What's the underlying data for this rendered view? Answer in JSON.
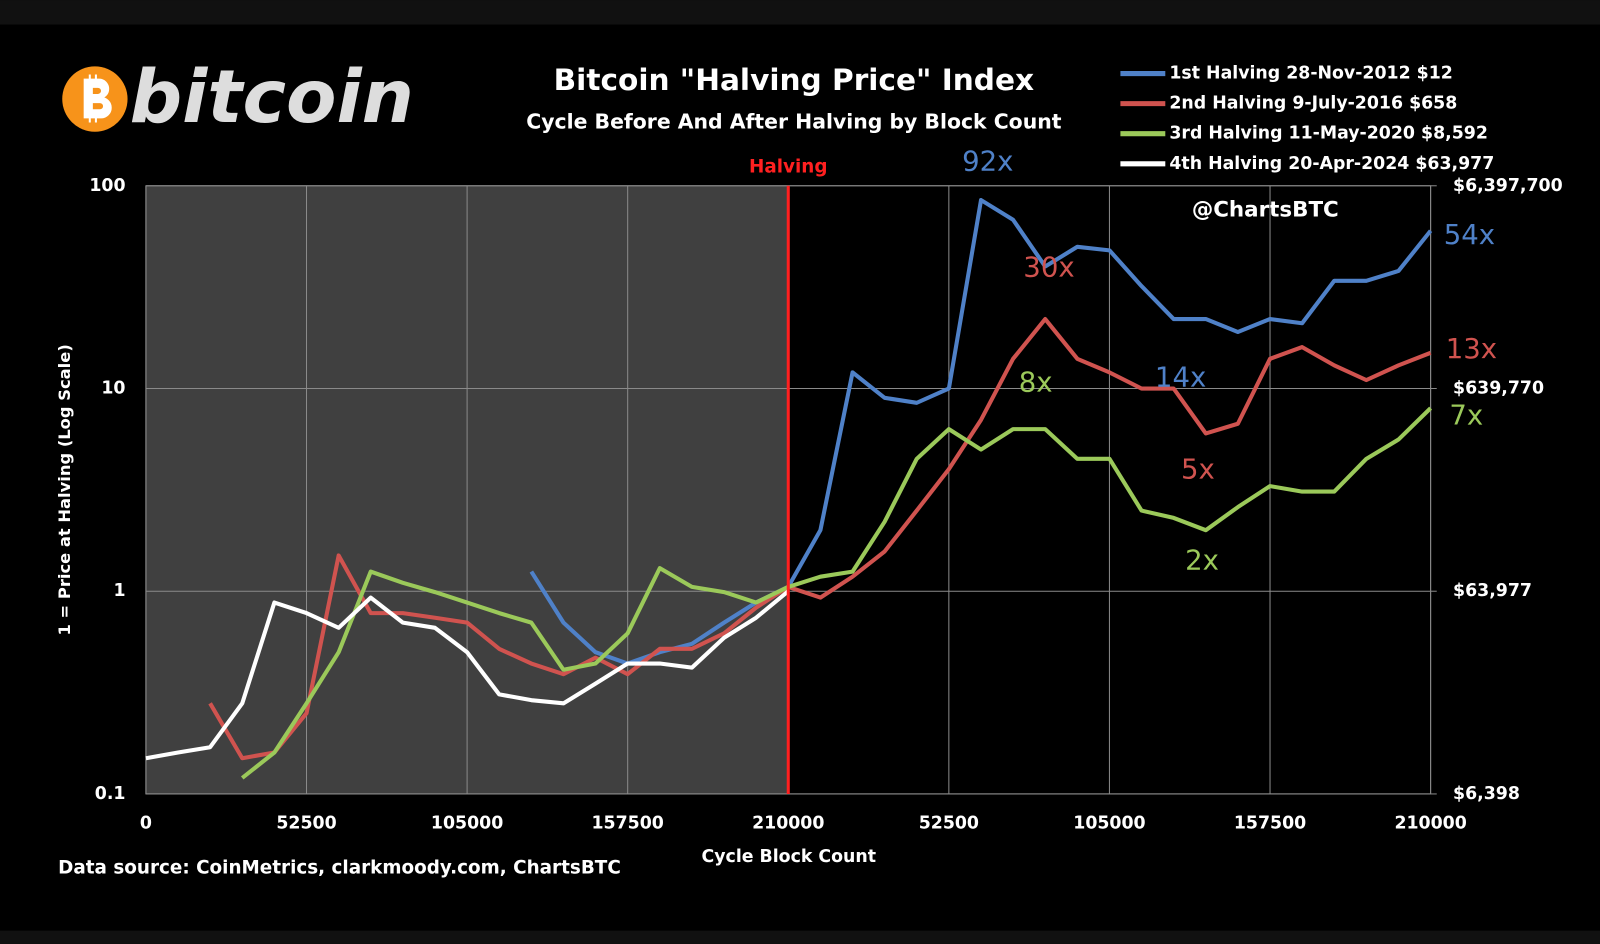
{
  "chart_data": {
    "type": "line",
    "logo_text": "bitcoin",
    "title": "Bitcoin \"Halving Price\" Index",
    "subtitle": "Cycle Before And After Halving by Block Count",
    "watermark": "@ChartsBTC",
    "x_label": "Cycle Block Count",
    "y_label": "1 = Price at Halving (Log Scale)",
    "source": "Data source:  CoinMetrics, clarkmoody.com, ChartsBTC",
    "halving": {
      "label": "Halving",
      "x": 210000,
      "color": "#ff2020"
    },
    "log_scale": true,
    "grid": true,
    "xlim": [
      0,
      420000
    ],
    "xticks": [
      0,
      52500,
      105000,
      157500,
      210000,
      {
        "value": 262500,
        "label": "52500"
      },
      {
        "value": 315000,
        "label": "105000"
      },
      {
        "value": 367500,
        "label": "157500"
      },
      {
        "value": 420000,
        "label": "210000"
      }
    ],
    "ylim": [
      0.1,
      100
    ],
    "yticks": [
      0.1,
      1,
      10,
      100
    ],
    "y2lim": [
      6397.7,
      6397700
    ],
    "y2ticks": [
      {
        "value": 6397.7,
        "label": "$6,398"
      },
      {
        "value": 63977,
        "label": "$63,977"
      },
      {
        "value": 639770,
        "label": "$639,770"
      },
      {
        "value": 6397700,
        "label": "$6,397,700"
      }
    ],
    "x": [
      0,
      10500,
      21000,
      31500,
      42000,
      52500,
      63000,
      73500,
      84000,
      94500,
      105000,
      115500,
      126000,
      136500,
      147000,
      157500,
      168000,
      178500,
      189000,
      199500,
      210000,
      220500,
      231000,
      241500,
      252000,
      262500,
      273000,
      283500,
      294000,
      304500,
      315000,
      325500,
      336000,
      346500,
      357000,
      367500,
      378000,
      388500,
      399000,
      409500,
      420000
    ],
    "series": [
      {
        "name": "1st Halving 28-Nov-2012 $12",
        "color": "#4f81c8",
        "values": [
          null,
          null,
          null,
          null,
          null,
          null,
          null,
          null,
          null,
          null,
          null,
          null,
          1.25,
          0.7,
          0.5,
          0.44,
          0.5,
          0.55,
          0.7,
          0.88,
          1.05,
          2,
          12,
          9,
          8.5,
          10,
          85,
          68,
          40,
          50,
          48,
          32,
          22,
          22,
          19,
          22,
          21,
          34,
          34,
          38,
          60
        ]
      },
      {
        "name": "2nd Halving 9-July-2016 $658",
        "color": "#d0534f",
        "values": [
          null,
          null,
          0.28,
          0.15,
          0.16,
          0.25,
          1.5,
          0.78,
          0.78,
          0.74,
          0.7,
          0.52,
          0.44,
          0.39,
          0.47,
          0.39,
          0.52,
          0.52,
          0.62,
          0.83,
          1.05,
          0.93,
          1.18,
          1.57,
          2.5,
          4,
          7,
          14,
          22,
          14,
          12,
          10,
          10,
          6,
          6.7,
          14,
          16,
          13,
          11,
          13,
          15
        ]
      },
      {
        "name": "3rd Halving 11-May-2020 $8,592",
        "color": "#9bc95a",
        "values": [
          null,
          null,
          null,
          0.12,
          0.16,
          0.28,
          0.5,
          1.25,
          1.1,
          0.99,
          0.88,
          0.78,
          0.7,
          0.41,
          0.44,
          0.62,
          1.3,
          1.05,
          0.99,
          0.88,
          1.05,
          1.18,
          1.25,
          2.2,
          4.5,
          6.3,
          5,
          6.3,
          6.3,
          4.5,
          4.5,
          2.5,
          2.3,
          2,
          2.6,
          3.3,
          3.1,
          3.1,
          4.5,
          5.6,
          8
        ]
      },
      {
        "name": "4th Halving 20-Apr-2024 $63,977",
        "color": "#ffffff",
        "values": [
          0.15,
          0.16,
          0.17,
          0.28,
          0.88,
          0.78,
          0.66,
          0.93,
          0.7,
          0.66,
          0.5,
          0.31,
          0.29,
          0.28,
          0.35,
          0.44,
          0.44,
          0.42,
          0.59,
          0.74,
          1,
          null,
          null,
          null,
          null,
          null,
          null,
          null,
          null,
          null,
          null,
          null,
          null,
          null,
          null,
          null,
          null,
          null,
          null,
          null,
          null
        ]
      }
    ],
    "annotations": [
      {
        "text": "92x",
        "color": "#4f81c8"
      },
      {
        "text": "30x",
        "color": "#d0534f"
      },
      {
        "text": "8x",
        "color": "#9bc95a"
      },
      {
        "text": "14x",
        "color": "#4f81c8"
      },
      {
        "text": "5x",
        "color": "#d0534f"
      },
      {
        "text": "2x",
        "color": "#9bc95a"
      },
      {
        "text": "54x",
        "color": "#4f81c8"
      },
      {
        "text": "13x",
        "color": "#d0534f"
      },
      {
        "text": "7x",
        "color": "#9bc95a"
      }
    ]
  }
}
